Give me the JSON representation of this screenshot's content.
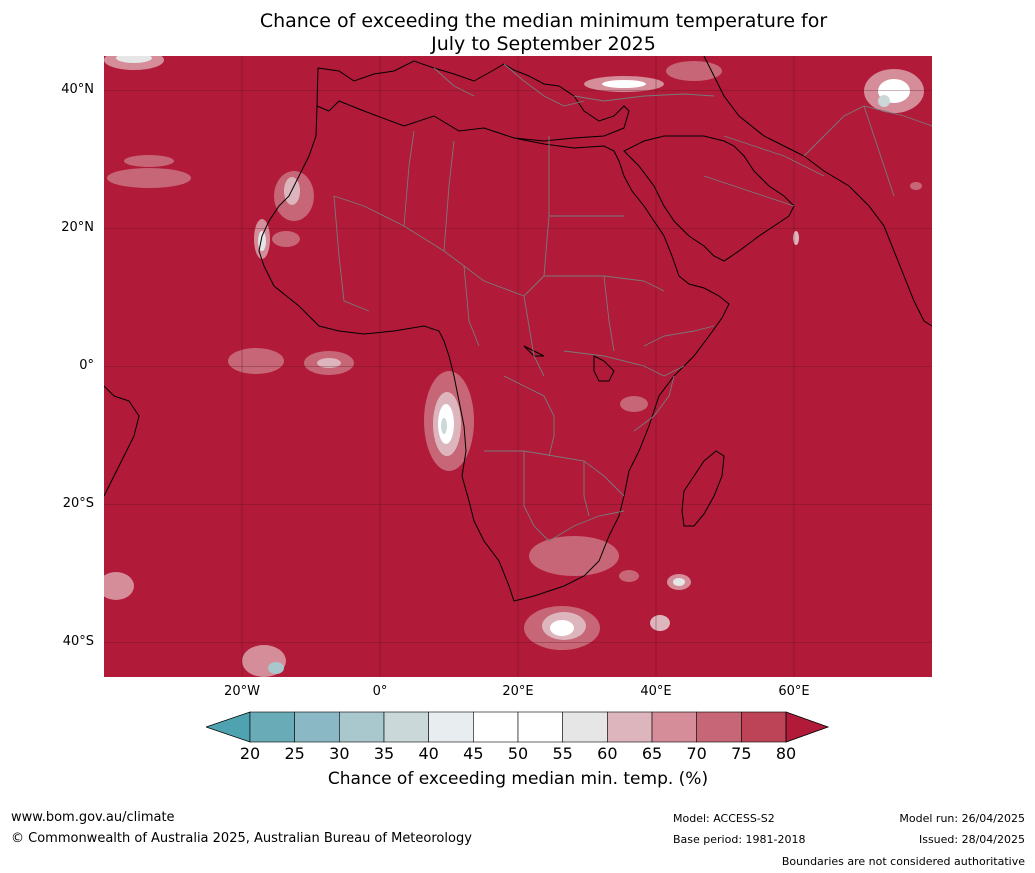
{
  "title_line1": "Chance of exceeding the median minimum temperature for",
  "title_line2": "July to September 2025",
  "map": {
    "lon_range": [
      -40,
      80
    ],
    "lat_range": [
      -45,
      45
    ],
    "background_color": "#b11a39",
    "lat_ticks": [
      {
        "value": 40,
        "label": "40°N"
      },
      {
        "value": 20,
        "label": "20°N"
      },
      {
        "value": 0,
        "label": "0°"
      },
      {
        "value": -20,
        "label": "20°S"
      },
      {
        "value": -40,
        "label": "40°S"
      }
    ],
    "lon_ticks": [
      {
        "value": -20,
        "label": "20°W"
      },
      {
        "value": 0,
        "label": "0°"
      },
      {
        "value": 20,
        "label": "20°E"
      },
      {
        "value": 40,
        "label": "40°E"
      },
      {
        "value": 60,
        "label": "60°E"
      }
    ]
  },
  "colorbar": {
    "ticks": [
      "20",
      "25",
      "30",
      "35",
      "40",
      "45",
      "50",
      "55",
      "60",
      "65",
      "70",
      "75",
      "80"
    ],
    "colors": [
      "#6aabb8",
      "#8ab8c4",
      "#a8c8cd",
      "#cad8d9",
      "#e8eef0",
      "#ffffff",
      "#ffffff",
      "#e6e6e6",
      "#ddb6bd",
      "#d48d99",
      "#c66676",
      "#bd4457"
    ],
    "under_color": "#4fa3b0",
    "over_color": "#b11a39",
    "label": "Chance of exceeding median min. temp. (%)"
  },
  "footer": {
    "website": "www.bom.gov.au/climate",
    "copyright": "© Commonwealth of Australia 2025, Australian Bureau of Meteorology",
    "model": "Model: ACCESS-S2",
    "base_period": "Base period: 1981-2018",
    "model_run": "Model run: 26/04/2025",
    "issued": "Issued: 28/04/2025",
    "disclaimer": "Boundaries are not considered authoritative"
  }
}
